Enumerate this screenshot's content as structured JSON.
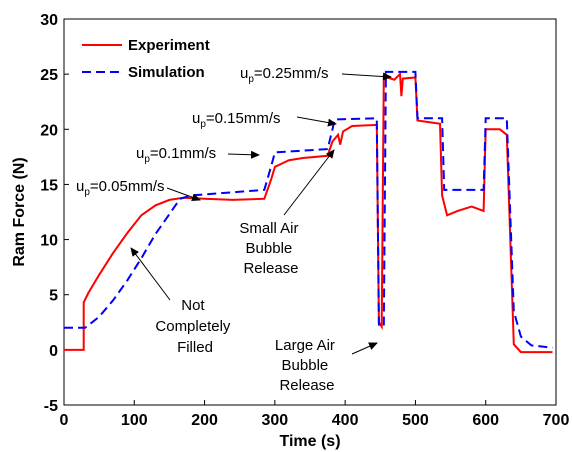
{
  "chart_data": {
    "type": "line",
    "xlabel": "Time (s)",
    "ylabel": "Ram Force (N)",
    "xlim": [
      0,
      700
    ],
    "ylim": [
      -5,
      30
    ],
    "xticks": [
      "0",
      "100",
      "200",
      "300",
      "400",
      "500",
      "600",
      "700"
    ],
    "yticks": [
      "-5",
      "0",
      "5",
      "10",
      "15",
      "20",
      "25",
      "30"
    ],
    "grid": false,
    "legend_position": "top-left",
    "series": [
      {
        "name": "Experiment",
        "color": "#ff0000",
        "style": "solid",
        "points": [
          [
            0,
            0
          ],
          [
            28,
            0
          ],
          [
            28,
            4.3
          ],
          [
            35,
            5.2
          ],
          [
            50,
            6.8
          ],
          [
            70,
            8.8
          ],
          [
            90,
            10.6
          ],
          [
            110,
            12.2
          ],
          [
            130,
            13.1
          ],
          [
            150,
            13.6
          ],
          [
            170,
            13.8
          ],
          [
            200,
            13.7
          ],
          [
            240,
            13.6
          ],
          [
            285,
            13.7
          ],
          [
            295,
            15.5
          ],
          [
            300,
            16.6
          ],
          [
            320,
            17.2
          ],
          [
            340,
            17.4
          ],
          [
            375,
            17.6
          ],
          [
            382,
            18.9
          ],
          [
            390,
            19.5
          ],
          [
            393,
            18.6
          ],
          [
            397,
            19.8
          ],
          [
            410,
            20.3
          ],
          [
            445,
            20.4
          ],
          [
            448,
            2.5
          ],
          [
            452,
            2.1
          ],
          [
            455,
            24.8
          ],
          [
            470,
            24.5
          ],
          [
            478,
            25
          ],
          [
            480,
            23
          ],
          [
            482,
            24.6
          ],
          [
            500,
            24.7
          ],
          [
            503,
            20.8
          ],
          [
            535,
            20.5
          ],
          [
            538,
            14
          ],
          [
            545,
            12.2
          ],
          [
            560,
            12.6
          ],
          [
            580,
            13
          ],
          [
            597,
            12.6
          ],
          [
            600,
            20
          ],
          [
            620,
            20
          ],
          [
            630,
            19.5
          ],
          [
            640,
            0.5
          ],
          [
            650,
            -0.2
          ],
          [
            680,
            -0.2
          ],
          [
            695,
            -0.2
          ]
        ]
      },
      {
        "name": "Simulation",
        "color": "#0000ff",
        "style": "dashed",
        "points": [
          [
            0,
            2
          ],
          [
            30,
            2
          ],
          [
            50,
            3
          ],
          [
            70,
            4.5
          ],
          [
            90,
            6.3
          ],
          [
            110,
            8.3
          ],
          [
            130,
            10.5
          ],
          [
            150,
            12.3
          ],
          [
            165,
            13.7
          ],
          [
            180,
            14
          ],
          [
            285,
            14.5
          ],
          [
            295,
            16.7
          ],
          [
            300,
            17.9
          ],
          [
            375,
            18.2
          ],
          [
            382,
            20
          ],
          [
            385,
            20.9
          ],
          [
            445,
            21
          ],
          [
            448,
            2.2
          ],
          [
            455,
            2.2
          ],
          [
            458,
            25.2
          ],
          [
            500,
            25.2
          ],
          [
            503,
            21
          ],
          [
            538,
            21
          ],
          [
            541,
            14.5
          ],
          [
            597,
            14.5
          ],
          [
            600,
            21
          ],
          [
            630,
            21
          ],
          [
            640,
            3.5
          ],
          [
            650,
            1.2
          ],
          [
            665,
            0.4
          ],
          [
            695,
            0.2
          ]
        ]
      }
    ],
    "annotations": [
      {
        "text": "u",
        "sub": "p",
        "rest": "=0.05mm/s"
      },
      {
        "text": "u",
        "sub": "p",
        "rest": "=0.1mm/s"
      },
      {
        "text": "u",
        "sub": "p",
        "rest": "=0.15mm/s"
      },
      {
        "text": "u",
        "sub": "p",
        "rest": "=0.25mm/s"
      },
      {
        "lines": [
          "Small Air",
          "Bubble",
          "Release"
        ]
      },
      {
        "lines": [
          "Large Air",
          "Bubble",
          "Release"
        ]
      },
      {
        "lines": [
          "Not",
          "Completely",
          "Filled"
        ]
      }
    ]
  }
}
